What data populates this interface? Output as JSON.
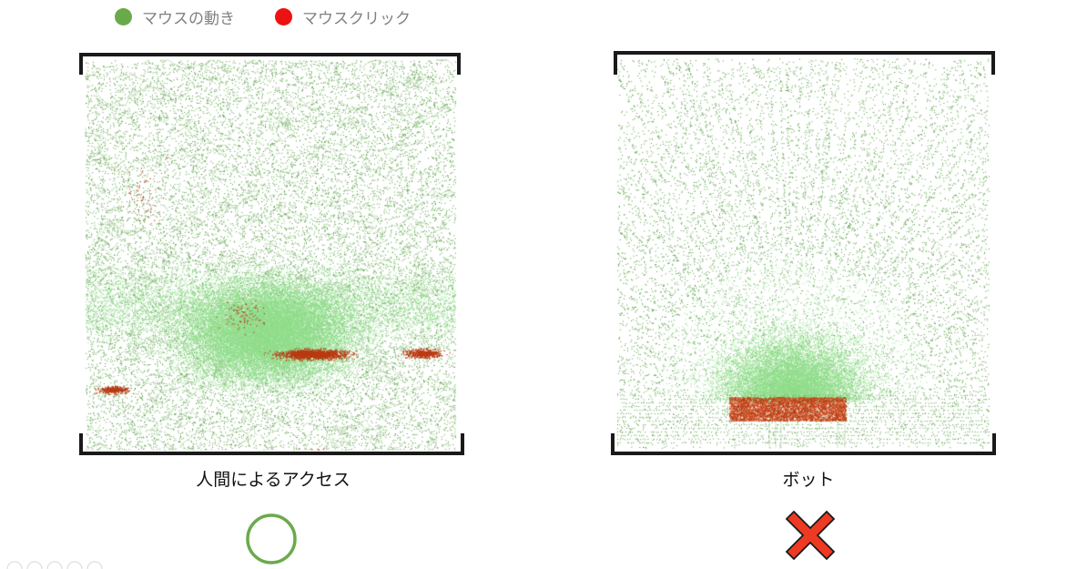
{
  "legend": {
    "items": [
      {
        "label": "マウスの動き",
        "color": "#6aaa4b"
      },
      {
        "label": "マウスクリック",
        "color": "#ee1111"
      }
    ]
  },
  "panels": {
    "human": {
      "caption": "人間によるアクセス",
      "verdict_icon": "circle-icon",
      "verdict_color": "#6aaa4b"
    },
    "bot": {
      "caption": "ボット",
      "verdict_icon": "cross-icon",
      "verdict_color": "#ee3a22"
    }
  },
  "colors": {
    "movement_dark": "#4f9a3a",
    "movement_light": "#8fdc8a",
    "click": "#b83a12",
    "frame": "#1a1a1a"
  }
}
